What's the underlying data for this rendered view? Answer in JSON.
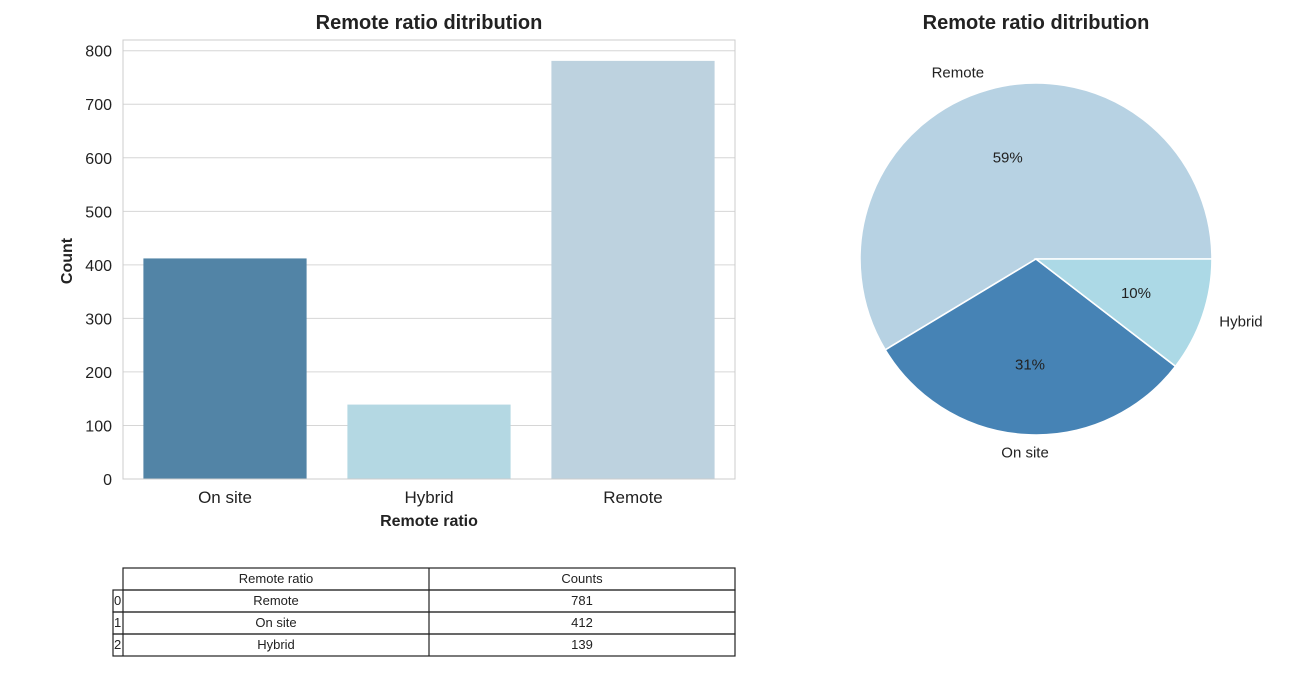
{
  "chart_data": [
    {
      "type": "bar",
      "title": "Remote ratio ditribution",
      "xlabel": "Remote ratio",
      "ylabel": "Count",
      "categories": [
        "On site",
        "Hybrid",
        "Remote"
      ],
      "values": [
        412,
        139,
        781
      ],
      "colors": [
        "#5284a6",
        "#b4d8e3",
        "#bdd2df"
      ],
      "ylim": [
        0,
        820
      ],
      "yticks": [
        0,
        100,
        200,
        300,
        400,
        500,
        600,
        700,
        800
      ],
      "grid": true
    },
    {
      "type": "pie",
      "title": "Remote ratio ditribution",
      "labels": [
        "Remote",
        "On site",
        "Hybrid"
      ],
      "values": [
        781,
        412,
        139
      ],
      "percent_labels": [
        "59%",
        "31%",
        "10%"
      ],
      "colors": [
        "#b7d2e3",
        "#4683b5",
        "#acd9e6"
      ]
    },
    {
      "type": "table",
      "columns": [
        "Remote ratio",
        "Counts"
      ],
      "index": [
        "0",
        "1",
        "2"
      ],
      "rows": [
        [
          "Remote",
          "781"
        ],
        [
          "On site",
          "412"
        ],
        [
          "Hybrid",
          "139"
        ]
      ]
    }
  ]
}
